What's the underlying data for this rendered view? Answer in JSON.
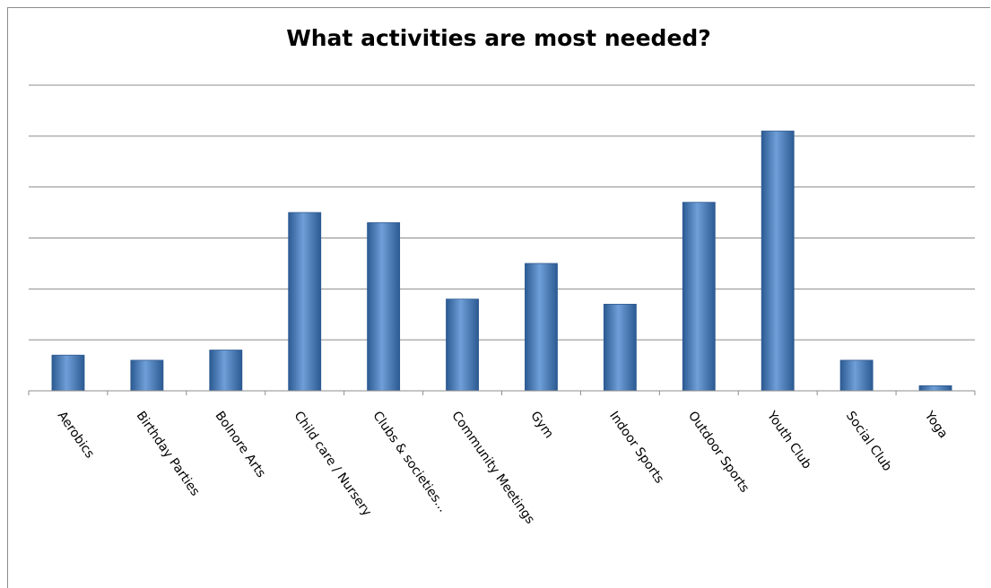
{
  "chart_data": {
    "type": "bar",
    "title": "What activities are most needed?",
    "categories": [
      "Aerobics",
      "Birthday Parties",
      "Bolnore Arts",
      "Child care / Nursery",
      "Clubs & societies...",
      "Community Meetings",
      "Gym",
      "Indoor Sports",
      "Outdoor Sports",
      "Youth Club",
      "Social Club",
      "Yoga"
    ],
    "values": [
      7,
      6,
      8,
      35,
      33,
      18,
      25,
      17,
      37,
      51,
      6,
      1
    ],
    "xlabel": "",
    "ylabel": "",
    "ylim": [
      0,
      60
    ],
    "y_tick_step": 10,
    "y_tick_labels_visible": false,
    "grid": true,
    "legend": "none",
    "colors": {
      "bar": "#4a7ebb",
      "bar_light": "#6f9fd8",
      "bar_dark": "#2c5a92",
      "gridline": "#8c8c8c",
      "axis": "#8c8c8c"
    }
  }
}
